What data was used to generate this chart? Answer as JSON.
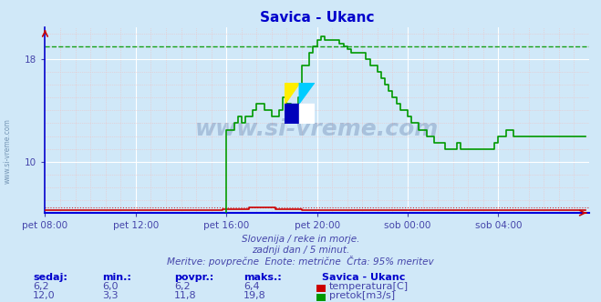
{
  "title": "Savica - Ukanc",
  "title_color": "#0000cc",
  "bg_color": "#d0e8f8",
  "plot_bg_color": "#d0e8f8",
  "grid_color_major": "#ffffff",
  "grid_color_minor": "#f0c0c0",
  "xlabel_color": "#4444aa",
  "watermark": "www.si-vreme.com",
  "x_labels": [
    "pet 08:00",
    "pet 12:00",
    "pet 16:00",
    "pet 20:00",
    "sob 00:00",
    "sob 04:00"
  ],
  "x_ticks": [
    0,
    24,
    48,
    72,
    96,
    120
  ],
  "x_max": 144,
  "ylim": [
    6.0,
    20.5
  ],
  "ytick_vals": [
    10,
    18
  ],
  "temp_color": "#cc0000",
  "flow_color": "#009900",
  "bottom_text1": "Slovenija / reke in morje.",
  "bottom_text2": "zadnji dan / 5 minut.",
  "bottom_text3": "Meritve: povprečne  Enote: metrične  Črta: 95% meritev",
  "bottom_text_color": "#4444aa",
  "table_headers": [
    "sedaj:",
    "min.:",
    "povpr.:",
    "maks.:"
  ],
  "table_header_color": "#0000cc",
  "row1_values": [
    "6,2",
    "6,0",
    "6,2",
    "6,4"
  ],
  "row2_values": [
    "12,0",
    "3,3",
    "11,8",
    "19,8"
  ],
  "table_station": "Savica - Ukanc",
  "table_labels": [
    "temperatura[C]",
    "pretok[m3/s]"
  ],
  "table_color": "#4444aa",
  "temp_max_dashed": 6.4,
  "flow_max_dashed": 19.0,
  "temp_data_y": [
    6.2,
    6.2,
    6.2,
    6.2,
    6.2,
    6.2,
    6.2,
    6.2,
    6.2,
    6.2,
    6.2,
    6.2,
    6.2,
    6.2,
    6.2,
    6.2,
    6.2,
    6.2,
    6.2,
    6.2,
    6.2,
    6.2,
    6.2,
    6.2,
    6.2,
    6.2,
    6.2,
    6.2,
    6.2,
    6.2,
    6.2,
    6.2,
    6.2,
    6.2,
    6.2,
    6.2,
    6.2,
    6.2,
    6.2,
    6.2,
    6.2,
    6.2,
    6.2,
    6.2,
    6.2,
    6.2,
    6.2,
    6.3,
    6.3,
    6.3,
    6.3,
    6.3,
    6.3,
    6.3,
    6.4,
    6.4,
    6.4,
    6.4,
    6.4,
    6.4,
    6.4,
    6.3,
    6.3,
    6.3,
    6.3,
    6.3,
    6.3,
    6.3,
    6.2,
    6.2,
    6.2,
    6.2,
    6.2,
    6.2,
    6.2,
    6.2,
    6.2,
    6.2,
    6.2,
    6.2,
    6.2,
    6.2,
    6.2,
    6.2,
    6.2,
    6.2,
    6.2,
    6.2,
    6.2,
    6.2,
    6.2,
    6.2,
    6.2,
    6.2,
    6.2,
    6.2,
    6.2,
    6.2,
    6.2,
    6.2,
    6.2,
    6.2,
    6.2,
    6.2,
    6.2,
    6.2,
    6.2,
    6.2,
    6.2,
    6.2,
    6.2,
    6.2,
    6.2,
    6.2,
    6.2,
    6.2,
    6.2,
    6.2,
    6.2,
    6.2,
    6.2,
    6.2,
    6.2,
    6.2,
    6.2,
    6.2,
    6.2,
    6.2,
    6.2,
    6.2,
    6.2,
    6.2,
    6.2,
    6.2,
    6.2,
    6.2,
    6.2,
    6.2,
    6.2,
    6.2,
    6.2,
    6.2,
    6.2,
    6.2
  ],
  "flow_data_y": [
    3.3,
    3.3,
    3.3,
    3.3,
    3.3,
    3.3,
    3.3,
    3.3,
    3.3,
    3.3,
    3.3,
    3.3,
    3.3,
    3.3,
    3.3,
    3.3,
    3.3,
    3.3,
    3.3,
    3.3,
    3.3,
    3.5,
    3.5,
    3.5,
    3.5,
    3.5,
    3.5,
    3.5,
    3.5,
    3.5,
    3.8,
    3.8,
    3.8,
    4.0,
    4.0,
    4.0,
    4.2,
    4.2,
    4.5,
    4.5,
    4.8,
    4.8,
    4.5,
    4.5,
    4.5,
    4.5,
    4.5,
    4.8,
    12.5,
    12.5,
    13.0,
    13.5,
    13.0,
    13.5,
    13.5,
    14.0,
    14.5,
    14.5,
    14.0,
    14.0,
    13.5,
    13.5,
    14.0,
    15.0,
    14.5,
    14.0,
    14.0,
    15.0,
    17.5,
    17.5,
    18.5,
    19.0,
    19.5,
    19.8,
    19.5,
    19.5,
    19.5,
    19.5,
    19.2,
    19.0,
    18.8,
    18.5,
    18.5,
    18.5,
    18.5,
    18.0,
    17.5,
    17.5,
    17.0,
    16.5,
    16.0,
    15.5,
    15.0,
    14.5,
    14.0,
    14.0,
    13.5,
    13.0,
    13.0,
    12.5,
    12.5,
    12.0,
    12.0,
    11.5,
    11.5,
    11.5,
    11.0,
    11.0,
    11.0,
    11.5,
    11.0,
    11.0,
    11.0,
    11.0,
    11.0,
    11.0,
    11.0,
    11.0,
    11.0,
    11.5,
    12.0,
    12.0,
    12.5,
    12.5,
    12.0,
    12.0,
    12.0,
    12.0,
    12.0,
    12.0,
    12.0,
    12.0,
    12.0,
    12.0,
    12.0,
    12.0,
    12.0,
    12.0,
    12.0,
    12.0,
    12.0,
    12.0,
    12.0,
    12.0
  ]
}
